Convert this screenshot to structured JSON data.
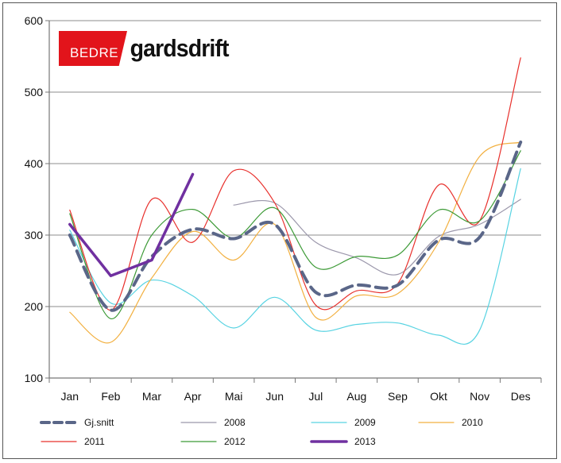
{
  "logo": {
    "red_text": "BEDRE",
    "black_text": "gardsdrift"
  },
  "chart_data": {
    "type": "line",
    "categories": [
      "Jan",
      "Feb",
      "Mar",
      "Apr",
      "Mai",
      "Jun",
      "Jul",
      "Aug",
      "Sep",
      "Okt",
      "Nov",
      "Des"
    ],
    "ylim": [
      100,
      600
    ],
    "yticks": [
      100,
      200,
      300,
      400,
      500,
      600
    ],
    "grid": "horizontal",
    "legend_position": "bottom",
    "series": [
      {
        "name": "Gj.snitt",
        "color": "#5a6688",
        "width": 4,
        "dash": "14 8",
        "values": [
          300,
          195,
          270,
          308,
          295,
          315,
          220,
          230,
          230,
          293,
          297,
          430
        ]
      },
      {
        "name": "2008",
        "color": "#9b97ab",
        "width": 1.2,
        "dash": "",
        "values": [
          null,
          null,
          null,
          null,
          342,
          345,
          290,
          268,
          245,
          298,
          315,
          350
        ]
      },
      {
        "name": "2009",
        "color": "#57d3e2",
        "width": 1.2,
        "dash": "",
        "values": [
          307,
          205,
          237,
          215,
          170,
          213,
          167,
          175,
          177,
          160,
          167,
          393
        ]
      },
      {
        "name": "2010",
        "color": "#f2b040",
        "width": 1.2,
        "dash": "",
        "values": [
          192,
          150,
          240,
          305,
          265,
          315,
          185,
          215,
          218,
          290,
          410,
          430
        ]
      },
      {
        "name": "2011",
        "color": "#e8302c",
        "width": 1.2,
        "dash": "",
        "values": [
          335,
          195,
          350,
          290,
          390,
          345,
          202,
          222,
          232,
          370,
          320,
          548
        ]
      },
      {
        "name": "2012",
        "color": "#3c9a36",
        "width": 1.2,
        "dash": "",
        "values": [
          330,
          183,
          300,
          336,
          296,
          338,
          255,
          270,
          272,
          335,
          320,
          418
        ]
      },
      {
        "name": "2013",
        "color": "#7030a0",
        "width": 3.5,
        "dash": "",
        "values": [
          315,
          243,
          265,
          385,
          null,
          null,
          null,
          null,
          null,
          null,
          null,
          null
        ]
      }
    ]
  }
}
